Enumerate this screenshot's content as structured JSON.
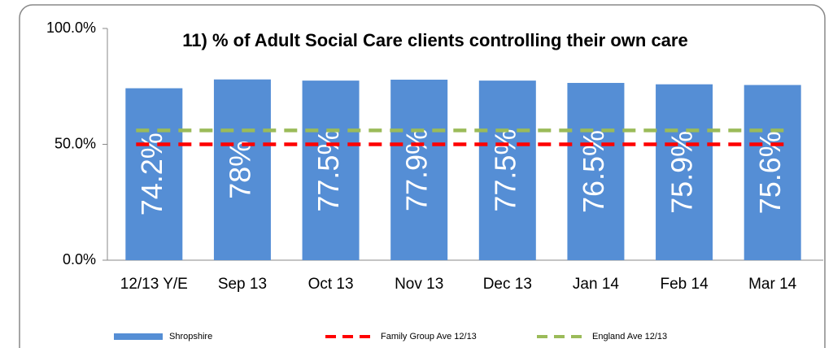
{
  "chart_data": {
    "type": "bar",
    "title": "11) % of Adult Social Care clients controlling their own care",
    "categories": [
      "12/13 Y/E",
      "Sep 13",
      "Oct 13",
      "Nov 13",
      "Dec 13",
      "Jan 14",
      "Feb 14",
      "Mar 14"
    ],
    "series": [
      {
        "name": "Shropshire",
        "color": "#558ed5",
        "kind": "bar",
        "values": [
          74.2,
          78,
          77.5,
          77.9,
          77.5,
          76.5,
          75.9,
          75.6
        ],
        "value_labels": [
          "74.2%",
          "78%",
          "77.5%",
          "77.9%",
          "77.5%",
          "76.5%",
          "75.9%",
          "75.6%"
        ]
      },
      {
        "name": "Family Group Ave 12/13",
        "color": "#ff0000",
        "kind": "dashed-line",
        "values": [
          50,
          50,
          50,
          50,
          50,
          50,
          50,
          50
        ]
      },
      {
        "name": "England Ave 12/13",
        "color": "#9bbb59",
        "kind": "dashed-line",
        "values": [
          56,
          56,
          56,
          56,
          56,
          56,
          56,
          56
        ]
      }
    ],
    "ylim": [
      0,
      100
    ],
    "yticks": [
      {
        "value": 0,
        "label": "0.0%"
      },
      {
        "value": 50,
        "label": "50.0%"
      },
      {
        "value": 100,
        "label": "100.0%"
      }
    ],
    "grid": false,
    "legend": "bottom"
  }
}
